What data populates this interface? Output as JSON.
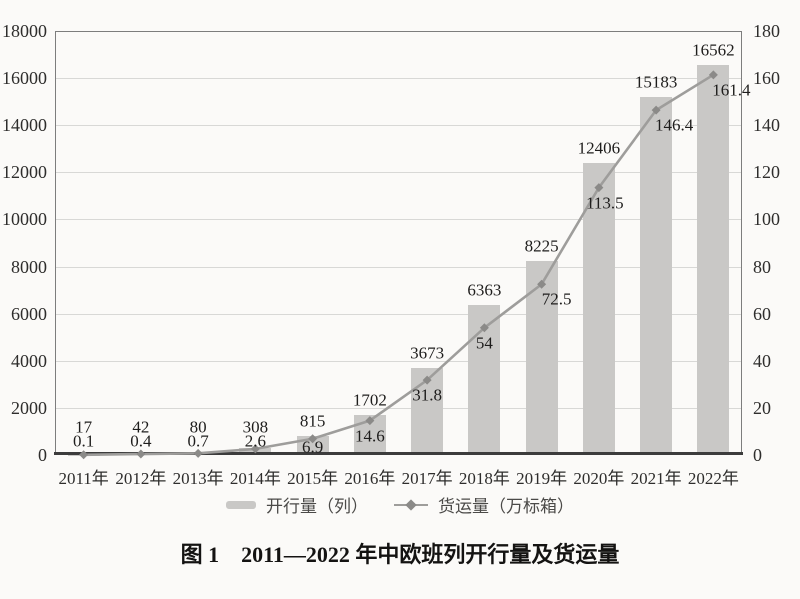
{
  "chart_data": {
    "type": "bar",
    "subtype": "bar+line combo, dual axis",
    "title": "",
    "caption": "图 1　2011—2022 年中欧班列开行量及货运量",
    "categories": [
      "2011年",
      "2012年",
      "2013年",
      "2014年",
      "2015年",
      "2016年",
      "2017年",
      "2018年",
      "2019年",
      "2020年",
      "2021年",
      "2022年"
    ],
    "series": [
      {
        "name": "开行量（列）",
        "type": "bar",
        "axis": "left",
        "values": [
          17,
          42,
          80,
          308,
          815,
          1702,
          3673,
          6363,
          8225,
          12406,
          15183,
          16562
        ]
      },
      {
        "name": "货运量（万标箱）",
        "type": "line",
        "axis": "right",
        "values": [
          0.1,
          0.4,
          0.7,
          2.6,
          6.9,
          14.6,
          31.8,
          54,
          72.5,
          113.5,
          146.4,
          161.4
        ]
      }
    ],
    "left_axis": {
      "min": 0,
      "max": 18000,
      "step": 2000
    },
    "right_axis": {
      "min": 0,
      "max": 180,
      "step": 20
    },
    "grid": "horizontal gridlines on",
    "legend_position": "bottom",
    "colors": {
      "bar": "#c9c8c6",
      "line": "#9e9d9b",
      "marker": "#8b8a88",
      "grid": "#d8d8d6",
      "plot_border": "#7d7d7d",
      "axis_line": "#3c3c3c",
      "label_text": "#1e1d1c",
      "axis_text": "#2e2d2c",
      "legend_text": "#4b4a48",
      "background": "#fbfaf8"
    }
  }
}
